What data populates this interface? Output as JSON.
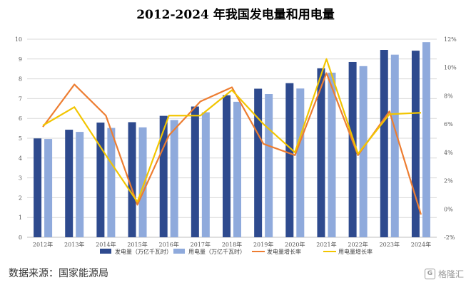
{
  "chart_data": {
    "type": "bar",
    "title": "2012-2024 年我国发电量和用电量",
    "categories": [
      "2012年",
      "2013年",
      "2014年",
      "2015年",
      "2016年",
      "2017年",
      "2018年",
      "2019年",
      "2020年",
      "2021年",
      "2022年",
      "2023年",
      "2024年"
    ],
    "y_left": {
      "ylim": [
        0,
        10
      ],
      "ticks": [
        "0",
        "1",
        "2",
        "3",
        "4",
        "5",
        "6",
        "7",
        "8",
        "9",
        "10"
      ]
    },
    "y_right": {
      "ylim": [
        -2,
        12
      ],
      "ticks": [
        "-2%",
        "0%",
        "2%",
        "4%",
        "6%",
        "8%",
        "10%",
        "12%"
      ]
    },
    "series": [
      {
        "name": "发电量（万亿千瓦时）",
        "type": "bar",
        "axis": "left",
        "color": "#2e4a8e",
        "values": [
          4.99,
          5.43,
          5.79,
          5.81,
          6.13,
          6.6,
          7.17,
          7.5,
          7.78,
          8.53,
          8.85,
          9.46,
          9.42
        ]
      },
      {
        "name": "用电量（万亿千瓦时）",
        "type": "bar",
        "axis": "left",
        "color": "#8faadc",
        "values": [
          4.96,
          5.32,
          5.52,
          5.55,
          5.92,
          6.31,
          6.84,
          7.23,
          7.51,
          8.31,
          8.64,
          9.22,
          9.85
        ]
      },
      {
        "name": "发电量增长率",
        "type": "line",
        "axis": "right",
        "color": "#ed7d31",
        "values": [
          5.8,
          8.8,
          6.6,
          0.3,
          5.2,
          7.6,
          8.6,
          4.6,
          3.8,
          9.6,
          3.8,
          6.9,
          -0.4
        ]
      },
      {
        "name": "用电量增长率",
        "type": "line",
        "axis": "right",
        "color": "#f2c500",
        "values": [
          5.9,
          7.2,
          3.8,
          0.5,
          6.6,
          6.6,
          8.4,
          6.0,
          4.0,
          10.6,
          3.9,
          6.7,
          6.8
        ]
      }
    ]
  },
  "footer": {
    "source": "数据来源：国家能源局",
    "watermark": "格隆汇",
    "watermark_logo": "G"
  }
}
